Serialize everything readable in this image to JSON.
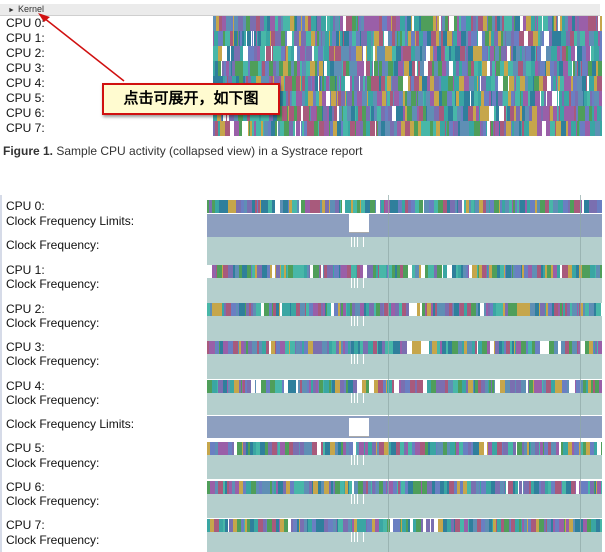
{
  "panel1": {
    "header": "Kernel",
    "cpus": [
      "CPU 0:",
      "CPU 1:",
      "CPU 2:",
      "CPU 3:",
      "CPU 4:",
      "CPU 5:",
      "CPU 6:",
      "CPU 7:"
    ]
  },
  "callout": "点击可展开，如下图",
  "caption": {
    "bold": "Figure 1.",
    "text": " Sample CPU activity (collapsed view) in a Systrace report"
  },
  "panel2": {
    "rows": [
      {
        "cpu": "CPU 0:",
        "sub": "Clock Frequency Limits:",
        "sub2": "Clock Frequency:"
      },
      {
        "cpu": "CPU 1:",
        "sub": "Clock Frequency:"
      },
      {
        "cpu": "CPU 2:",
        "sub": "Clock Frequency:"
      },
      {
        "cpu": "CPU 3:",
        "sub": "Clock Frequency:"
      },
      {
        "cpu": "CPU 4:",
        "sub": "Clock Frequency:",
        "sub2": "Clock Frequency Limits:"
      },
      {
        "cpu": "CPU 5:",
        "sub": "Clock Frequency:"
      },
      {
        "cpu": "CPU 6:",
        "sub": "Clock Frequency:"
      },
      {
        "cpu": "CPU 7:",
        "sub": "Clock Frequency:"
      }
    ]
  },
  "colors": {
    "slices": [
      "#3aa6a3",
      "#5f8fb5",
      "#7a6fb0",
      "#4f9e5a",
      "#9a5fa8",
      "#c6a64b",
      "#2f7f9c",
      "#a85a7c",
      "#48b7a8",
      "#6a7fc2"
    ],
    "callout_border": "#d01010",
    "callout_bg": "#fffbd0"
  }
}
